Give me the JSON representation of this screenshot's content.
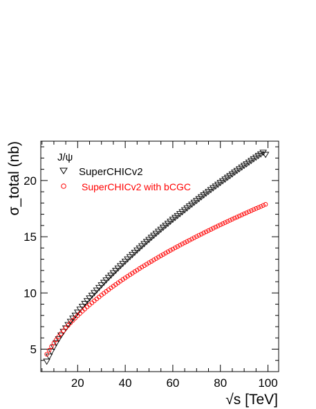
{
  "chart_data": {
    "type": "scatter",
    "title": "",
    "xlabel": "√s [TeV]",
    "ylabel": "σ_total (nb)",
    "xlim": [
      4.5,
      104.5
    ],
    "ylim": [
      3,
      23.5
    ],
    "x_ticks": [
      "20",
      "40",
      "60",
      "80",
      "100"
    ],
    "y_ticks": [
      "5",
      "10",
      "15",
      "20"
    ],
    "grid": false,
    "legend": {
      "position": "top-left",
      "header": "J/ψ",
      "entries": [
        "SuperCHICv2",
        "SuperCHICv2 with bCGC"
      ]
    },
    "series": [
      {
        "name": "SuperCHICv2",
        "marker": "open-triangle-down",
        "color": "#000000",
        "x": [
          7,
          8,
          9,
          10,
          11,
          12,
          13,
          14,
          15,
          16,
          17,
          18,
          19,
          20,
          21,
          22,
          23,
          24,
          25,
          26,
          27,
          28,
          29,
          30,
          31,
          32,
          33,
          34,
          35,
          36,
          37,
          38,
          39,
          40,
          41,
          42,
          43,
          44,
          45,
          46,
          47,
          48,
          49,
          50,
          51,
          52,
          53,
          54,
          55,
          56,
          57,
          58,
          59,
          60,
          61,
          62,
          63,
          64,
          65,
          66,
          67,
          68,
          69,
          70,
          71,
          72,
          73,
          74,
          75,
          76,
          77,
          78,
          79,
          80,
          81,
          82,
          83,
          84,
          85,
          86,
          87,
          88,
          89,
          90,
          91,
          92,
          93,
          94,
          95,
          96,
          97,
          98,
          99
        ],
        "y": [
          3.9,
          4.35,
          4.78,
          5.17,
          5.54,
          5.89,
          6.23,
          6.55,
          6.86,
          7.16,
          7.45,
          7.73,
          8.0,
          8.27,
          8.53,
          8.79,
          9.04,
          9.29,
          9.53,
          9.77,
          10.0,
          10.23,
          10.46,
          10.69,
          10.91,
          11.13,
          11.35,
          11.56,
          11.77,
          11.98,
          12.19,
          12.4,
          12.6,
          12.8,
          13.0,
          13.2,
          13.4,
          13.59,
          13.79,
          13.98,
          14.17,
          14.36,
          14.55,
          14.73,
          14.92,
          15.1,
          15.28,
          15.46,
          15.64,
          15.82,
          16.0,
          16.17,
          16.35,
          16.52,
          16.69,
          16.86,
          17.03,
          17.2,
          17.37,
          17.54,
          17.71,
          17.87,
          18.04,
          18.2,
          18.36,
          18.53,
          18.69,
          18.85,
          19.01,
          19.17,
          19.33,
          19.48,
          19.64,
          19.8,
          19.95,
          20.1,
          20.26,
          20.41,
          20.56,
          20.72,
          20.87,
          21.02,
          21.17,
          21.32,
          21.46,
          21.61,
          21.76,
          21.91,
          22.05,
          22.2,
          22.34,
          22.49,
          22.3
        ]
      },
      {
        "name": "SuperCHICv2 with bCGC",
        "marker": "open-circle",
        "color": "#ff0000",
        "x": [
          7,
          8,
          9,
          10,
          11,
          12,
          13,
          14,
          15,
          16,
          17,
          18,
          19,
          20,
          21,
          22,
          23,
          24,
          25,
          26,
          27,
          28,
          29,
          30,
          31,
          32,
          33,
          34,
          35,
          36,
          37,
          38,
          39,
          40,
          41,
          42,
          43,
          44,
          45,
          46,
          47,
          48,
          49,
          50,
          51,
          52,
          53,
          54,
          55,
          56,
          57,
          58,
          59,
          60,
          61,
          62,
          63,
          64,
          65,
          66,
          67,
          68,
          69,
          70,
          71,
          72,
          73,
          74,
          75,
          76,
          77,
          78,
          79,
          80,
          81,
          82,
          83,
          84,
          85,
          86,
          87,
          88,
          89,
          90,
          91,
          92,
          93,
          94,
          95,
          96,
          97,
          98,
          99
        ],
        "y": [
          4.55,
          4.9,
          5.23,
          5.54,
          5.83,
          6.11,
          6.38,
          6.63,
          6.88,
          7.11,
          7.34,
          7.56,
          7.77,
          7.98,
          8.18,
          8.38,
          8.57,
          8.76,
          8.94,
          9.12,
          9.3,
          9.47,
          9.64,
          9.81,
          9.97,
          10.13,
          10.29,
          10.45,
          10.6,
          10.75,
          10.9,
          11.05,
          11.2,
          11.34,
          11.48,
          11.62,
          11.76,
          11.9,
          12.03,
          12.17,
          12.3,
          12.43,
          12.56,
          12.69,
          12.81,
          12.94,
          13.06,
          13.19,
          13.31,
          13.43,
          13.55,
          13.67,
          13.79,
          13.9,
          14.02,
          14.13,
          14.25,
          14.36,
          14.47,
          14.58,
          14.69,
          14.8,
          14.91,
          15.02,
          15.13,
          15.23,
          15.34,
          15.44,
          15.55,
          15.65,
          15.76,
          15.86,
          15.96,
          16.06,
          16.16,
          16.26,
          16.36,
          16.46,
          16.56,
          16.66,
          16.75,
          16.85,
          16.94,
          17.04,
          17.13,
          17.23,
          17.32,
          17.42,
          17.51,
          17.6,
          17.69,
          17.79,
          17.88
        ]
      }
    ]
  }
}
